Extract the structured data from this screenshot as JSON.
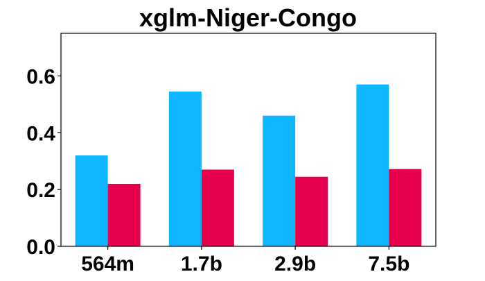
{
  "chart_data": {
    "type": "bar",
    "title": "xglm-Niger-Congo",
    "xlabel": "",
    "ylabel": "",
    "categories": [
      "564m",
      "1.7b",
      "2.9b",
      "7.5b"
    ],
    "series": [
      {
        "values": [
          0.32,
          0.545,
          0.46,
          0.57
        ]
      },
      {
        "values": [
          0.22,
          0.27,
          0.245,
          0.272
        ]
      }
    ],
    "colors": [
      "#0fb5ff",
      "#e6004c"
    ],
    "ylim": [
      0,
      0.75
    ],
    "yticks": [
      0.0,
      0.2,
      0.4,
      0.6
    ],
    "ytick_labels": [
      "0.0",
      "0.2",
      "0.4",
      "0.6"
    ],
    "grid": false,
    "legend": "none"
  }
}
